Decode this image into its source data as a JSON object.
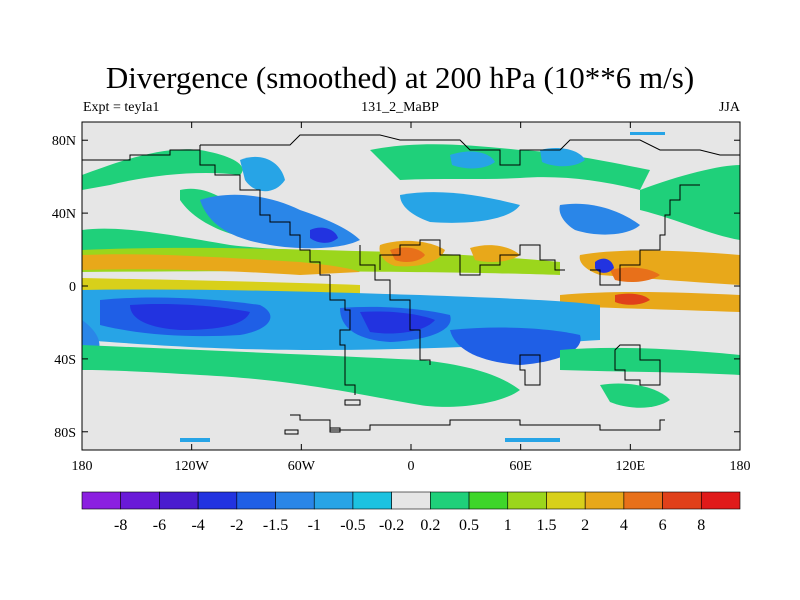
{
  "header": {
    "title": "Divergence (smoothed) at 200 hPa (10**6 m/s)",
    "left": "Expt = teyIa1",
    "center": "131_2_MaBP",
    "right": "JJA"
  },
  "axes": {
    "lat_labels": [
      "80N",
      "40N",
      "0",
      "40S",
      "80S"
    ],
    "lat_values": [
      80,
      40,
      0,
      -40,
      -80
    ],
    "lon_labels": [
      "180",
      "120W",
      "60W",
      "0",
      "60E",
      "120E",
      "180"
    ],
    "lon_values": [
      -180,
      -120,
      -60,
      0,
      60,
      120,
      180
    ],
    "lon_range": [
      -180,
      180
    ],
    "lat_range": [
      -90,
      90
    ]
  },
  "colorbar": {
    "labels": [
      "-8",
      "-6",
      "-4",
      "-2",
      "-1.5",
      "-1",
      "-0.5",
      "-0.2",
      "0.2",
      "0.5",
      "1",
      "1.5",
      "2",
      "4",
      "6",
      "8"
    ],
    "colors": [
      "#8b1fe0",
      "#6a1ad8",
      "#4a1ccf",
      "#2233e0",
      "#1f5fe6",
      "#2a86e8",
      "#27a4e6",
      "#1cc2e0",
      "#e6e6e6",
      "#1fd07a",
      "#3ed62a",
      "#9bd61c",
      "#d8d01a",
      "#e8a81a",
      "#e8701a",
      "#e0401a",
      "#e01a1a"
    ]
  },
  "chart_data": {
    "type": "heatmap",
    "projection": "cylindrical-equidistant",
    "variable": "Divergence (smoothed) at 200 hPa",
    "units": "10**6 m/s",
    "levels": [
      -8,
      -6,
      -4,
      -2,
      -1.5,
      -1,
      -0.5,
      -0.2,
      0.2,
      0.5,
      1,
      1.5,
      2,
      4,
      6,
      8
    ],
    "lon_range": [
      -180,
      180
    ],
    "lat_range": [
      -90,
      90
    ],
    "features": [
      {
        "lon": -90,
        "lat": 18,
        "value": 2,
        "w": 60,
        "h": 8
      },
      {
        "lon": 0,
        "lat": 15,
        "value": 4,
        "w": 25,
        "h": 10
      },
      {
        "lon": 40,
        "lat": 15,
        "value": 2,
        "w": 25,
        "h": 10
      },
      {
        "lon": 130,
        "lat": 8,
        "value": 4,
        "w": 40,
        "h": 10
      },
      {
        "lon": 160,
        "lat": 15,
        "value": 2,
        "w": 40,
        "h": 8
      },
      {
        "lon": 140,
        "lat": -5,
        "value": 2,
        "w": 45,
        "h": 8
      },
      {
        "lon": -130,
        "lat": -15,
        "value": -4,
        "w": 60,
        "h": 12
      },
      {
        "lon": -20,
        "lat": -18,
        "value": -2,
        "w": 50,
        "h": 12
      },
      {
        "lon": 60,
        "lat": -25,
        "value": -1.5,
        "w": 50,
        "h": 12
      },
      {
        "lon": -80,
        "lat": 25,
        "value": -2,
        "w": 20,
        "h": 10
      },
      {
        "lon": 100,
        "lat": 10,
        "value": -4,
        "w": 8,
        "h": 8
      },
      {
        "lon": -150,
        "lat": 55,
        "value": 0.5,
        "w": 40,
        "h": 6
      },
      {
        "lon": 45,
        "lat": 70,
        "value": -1,
        "w": 15,
        "h": 8
      },
      {
        "lon": 30,
        "lat": -70,
        "value": 0.5,
        "w": 30,
        "h": 6
      }
    ]
  }
}
